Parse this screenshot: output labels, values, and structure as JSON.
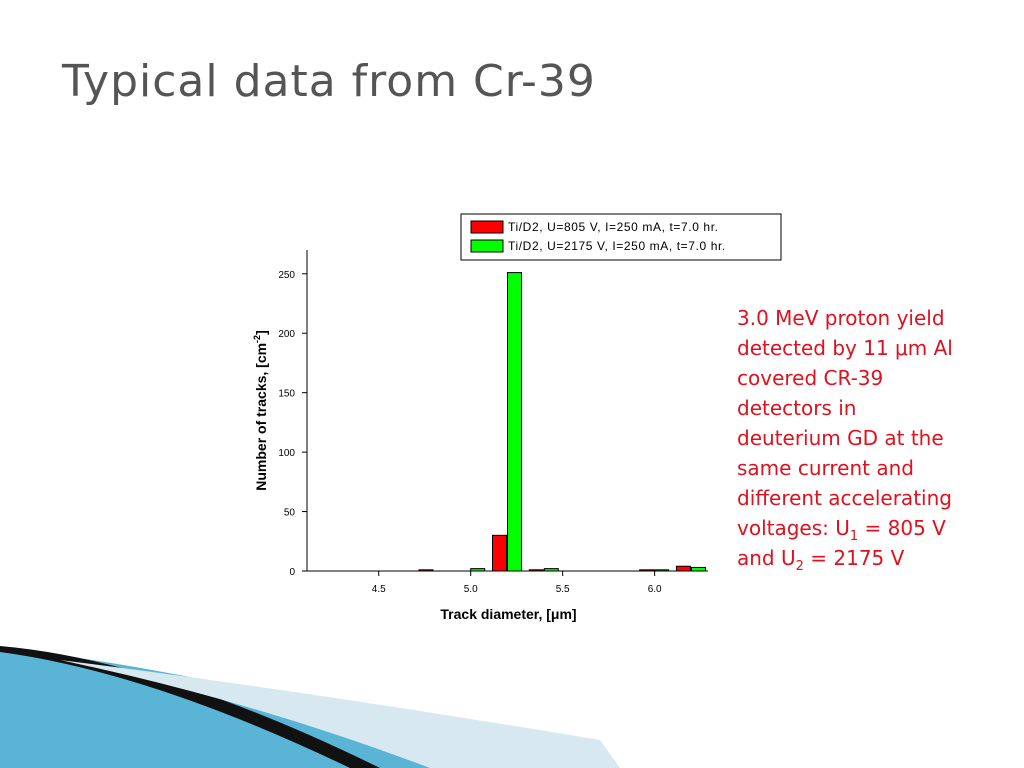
{
  "title": "Typical data from Cr-39",
  "note": [
    "3.0 MeV proton yield detected by 11 μm Al covered CR-39 detectors in deuterium GD at the same current and different accelerating voltages: U",
    "1",
    " = 805 V and U",
    "2",
    " = 2175 V"
  ],
  "chart_data": {
    "type": "bar",
    "x_label": "Track diameter, [μm]",
    "y_label": [
      "Number of tracks, [cm",
      "-2",
      "]"
    ],
    "x": [
      4.8,
      5.0,
      5.2,
      5.4,
      6.0,
      6.2
    ],
    "series": [
      {
        "name": "Ti/D2, U=805 V, I=250 mA, t=7.0 hr.",
        "color": "#ff0000",
        "values": [
          1,
          0,
          30,
          1,
          1,
          4
        ]
      },
      {
        "name": "Ti/D2, U=2175 V, I=250 mA, t=7.0 hr.",
        "color": "#00ff00",
        "values": [
          0,
          2,
          251,
          2,
          1,
          3
        ]
      }
    ],
    "xlim": [
      4.11,
      6.29
    ],
    "xticks": [
      4.5,
      {
        "value": 5,
        "label": "5.0"
      },
      5.5,
      {
        "value": 6,
        "label": "6.0"
      }
    ],
    "ylim": [
      0,
      270
    ],
    "yticks": [
      0,
      50,
      100,
      150,
      200,
      250
    ],
    "grid": false,
    "legend": "top"
  }
}
